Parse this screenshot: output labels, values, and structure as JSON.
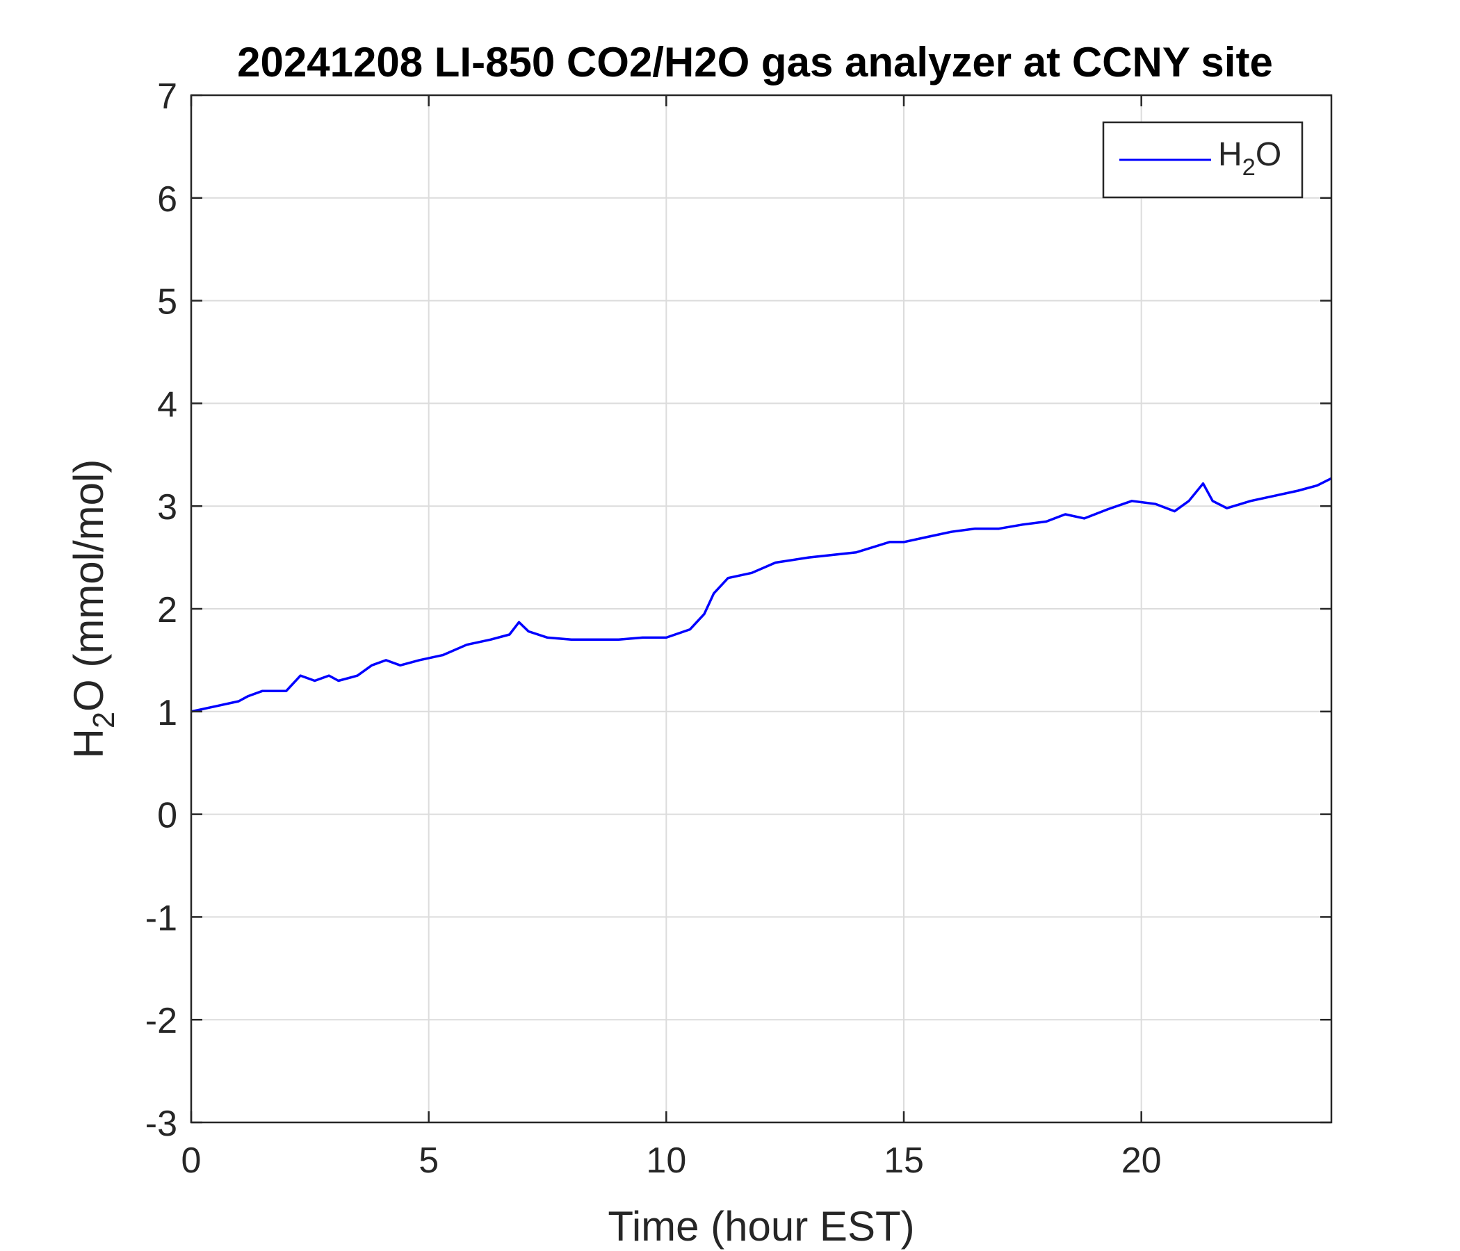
{
  "chart_data": {
    "type": "line",
    "title": "20241208 LI-850 CO2/H2O gas analyzer at CCNY site",
    "xlabel": "Time (hour EST)",
    "ylabel": {
      "prefix": "H",
      "subscript": "2",
      "suffix": "O (mmol/mol)"
    },
    "xlim": [
      0,
      24
    ],
    "ylim": [
      -3,
      7
    ],
    "xticks": [
      0,
      5,
      10,
      15,
      20
    ],
    "yticks": [
      -3,
      -2,
      -1,
      0,
      1,
      2,
      3,
      4,
      5,
      6,
      7
    ],
    "grid": true,
    "legend": {
      "position": "top-right"
    },
    "series": [
      {
        "name": {
          "prefix": "H",
          "subscript": "2",
          "suffix": "O"
        },
        "color": "#0000ff",
        "x": [
          0,
          0.5,
          1.0,
          1.2,
          1.5,
          2.0,
          2.3,
          2.6,
          2.9,
          3.1,
          3.5,
          3.8,
          4.1,
          4.4,
          4.8,
          5.3,
          5.8,
          6.3,
          6.7,
          6.9,
          7.1,
          7.5,
          8.0,
          8.5,
          9.0,
          9.5,
          10.0,
          10.5,
          10.8,
          11.0,
          11.3,
          11.8,
          12.3,
          13.0,
          14.0,
          14.7,
          15.0,
          15.5,
          16.0,
          16.5,
          17.0,
          17.5,
          18.0,
          18.4,
          18.8,
          19.3,
          19.8,
          20.3,
          20.7,
          21.0,
          21.3,
          21.5,
          21.8,
          22.3,
          22.8,
          23.3,
          23.7,
          24.0
        ],
        "y": [
          1.0,
          1.05,
          1.1,
          1.15,
          1.2,
          1.2,
          1.35,
          1.3,
          1.35,
          1.3,
          1.35,
          1.45,
          1.5,
          1.45,
          1.5,
          1.55,
          1.65,
          1.7,
          1.75,
          1.87,
          1.78,
          1.72,
          1.7,
          1.7,
          1.7,
          1.72,
          1.72,
          1.8,
          1.95,
          2.15,
          2.3,
          2.35,
          2.45,
          2.5,
          2.55,
          2.65,
          2.65,
          2.7,
          2.75,
          2.78,
          2.78,
          2.82,
          2.85,
          2.92,
          2.88,
          2.97,
          3.05,
          3.02,
          2.95,
          3.05,
          3.22,
          3.05,
          2.98,
          3.05,
          3.1,
          3.15,
          3.2,
          3.27
        ]
      }
    ]
  }
}
